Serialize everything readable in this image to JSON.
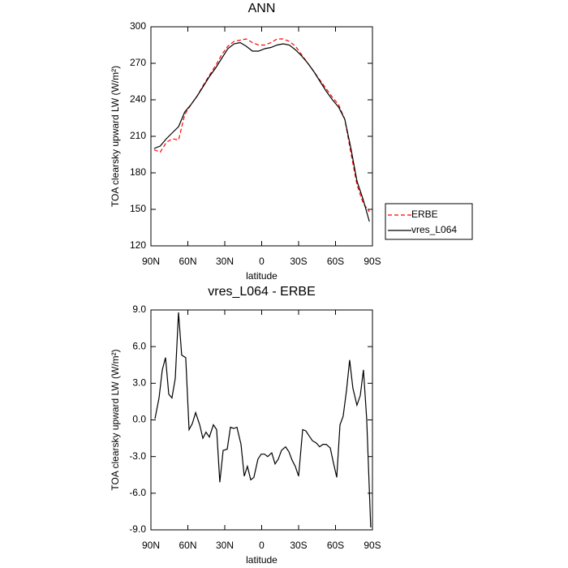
{
  "chart_data": [
    {
      "type": "line",
      "title": "ANN",
      "xlabel": "latitude",
      "ylabel": "TOA clearsky upward LW (W/m²)",
      "x": [
        87.5,
        82.5,
        77.5,
        72.5,
        67.5,
        62.5,
        57.5,
        52.5,
        47.5,
        42.5,
        37.5,
        32.5,
        27.5,
        22.5,
        17.5,
        12.5,
        7.5,
        2.5,
        -2.5,
        -7.5,
        -12.5,
        -17.5,
        -22.5,
        -27.5,
        -32.5,
        -37.5,
        -42.5,
        -47.5,
        -52.5,
        -57.5,
        -62.5,
        -67.5,
        -72.5,
        -77.5,
        -82.5,
        -87.5
      ],
      "series": [
        {
          "name": "ERBE",
          "color": "#ff0000",
          "linestyle": "dashed",
          "values": [
            199,
            197,
            205,
            208,
            207,
            228,
            236,
            243,
            252,
            260,
            268,
            277,
            284,
            288,
            289,
            290,
            287,
            285,
            285,
            287,
            290,
            290,
            288,
            284,
            277,
            270,
            263,
            256,
            249,
            242,
            236,
            224,
            196,
            170,
            155,
            148
          ]
        },
        {
          "name": "vres_L064",
          "color": "#000000",
          "linestyle": "solid",
          "values": [
            200,
            202,
            208,
            213,
            218,
            230,
            236,
            243,
            251,
            259,
            266,
            274,
            282,
            286,
            287,
            284,
            280,
            280,
            282,
            283,
            285,
            286,
            285,
            281,
            276,
            270,
            263,
            255,
            247,
            240,
            234,
            224,
            200,
            173,
            158,
            140
          ]
        }
      ],
      "xlim": [
        90,
        -90
      ],
      "xticks": [
        {
          "value": 90,
          "label": "90N"
        },
        {
          "value": 60,
          "label": "60N"
        },
        {
          "value": 30,
          "label": "30N"
        },
        0,
        {
          "value": -30,
          "label": "30S"
        },
        {
          "value": -60,
          "label": "60S"
        },
        {
          "value": -90,
          "label": "90S"
        }
      ],
      "ylim": [
        120,
        300
      ],
      "yticks": [
        120,
        150,
        180,
        210,
        240,
        270,
        300
      ],
      "legend": "outside-right"
    },
    {
      "type": "line",
      "title": "vres_L064 - ERBE",
      "xlabel": "latitude",
      "ylabel": "TOA clearsky upward LW (W/m²)",
      "x": [
        86.7,
        83.4,
        80.8,
        78.1,
        75.5,
        72.9,
        70.2,
        67.6,
        65,
        61.7,
        59,
        56.4,
        53.7,
        50.4,
        47.8,
        45.2,
        42.5,
        39.2,
        36.6,
        34,
        31.3,
        28,
        25.4,
        22.7,
        20.1,
        16.8,
        14.2,
        11.6,
        8.9,
        6.3,
        3,
        0.4,
        -2.3,
        -4.9,
        -8.2,
        -10.9,
        -13.5,
        -16.1,
        -19.4,
        -22.1,
        -24.7,
        -27.3,
        -30,
        -33.3,
        -35.9,
        -38.5,
        -41.2,
        -44.5,
        -47.1,
        -49.8,
        -52.4,
        -55.7,
        -58.3,
        -61,
        -63.6,
        -66.2,
        -68.9,
        -71.5,
        -74.1,
        -77.4,
        -80.1,
        -82.7,
        -85.3,
        -88.6
      ],
      "values": [
        0.1,
        1.8,
        4.1,
        5.1,
        2.1,
        1.8,
        3.4,
        8.8,
        5.3,
        5.1,
        -0.8,
        -0.3,
        0.6,
        -0.4,
        -1.5,
        -1.0,
        -1.4,
        -0.4,
        -0.8,
        -5.1,
        -2.5,
        -2.4,
        -0.6,
        -0.7,
        -0.6,
        -2.0,
        -4.6,
        -3.8,
        -4.9,
        -4.7,
        -3.2,
        -2.8,
        -2.8,
        -3.0,
        -2.7,
        -3.6,
        -3.2,
        -2.5,
        -2.2,
        -2.6,
        -3.3,
        -3.8,
        -4.6,
        -0.8,
        -0.9,
        -1.3,
        -1.7,
        -1.9,
        -2.2,
        -2.0,
        -2.0,
        -2.3,
        -3.5,
        -4.7,
        -0.4,
        0.3,
        2.4,
        4.9,
        2.6,
        1.2,
        2.0,
        4.1,
        0.1,
        -8.8
      ],
      "color": "#000000",
      "xlim": [
        90,
        -90
      ],
      "xticks": [
        {
          "value": 90,
          "label": "90N"
        },
        {
          "value": 60,
          "label": "60N"
        },
        {
          "value": 30,
          "label": "30N"
        },
        0,
        {
          "value": -30,
          "label": "30S"
        },
        {
          "value": -60,
          "label": "60S"
        },
        {
          "value": -90,
          "label": "90S"
        }
      ],
      "ylim": [
        -9,
        9
      ],
      "yticks": [
        {
          "value": -9,
          "label": "-9.0"
        },
        {
          "value": -6,
          "label": "-6.0"
        },
        {
          "value": -3,
          "label": "-3.0"
        },
        {
          "value": 0,
          "label": "0.0"
        },
        {
          "value": 3,
          "label": "3.0"
        },
        {
          "value": 6,
          "label": "6.0"
        },
        {
          "value": 9,
          "label": "9.0"
        }
      ]
    }
  ]
}
